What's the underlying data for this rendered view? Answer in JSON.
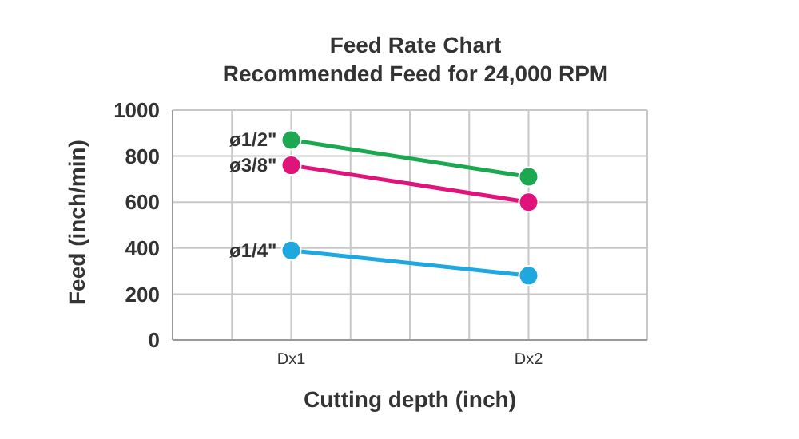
{
  "chart_data": {
    "type": "line",
    "title": "Feed Rate Chart",
    "subtitle": "Recommended Feed for 24,000 RPM",
    "xlabel": "Cutting depth (inch)",
    "ylabel": "Feed (inch/min)",
    "categories": [
      "Dx1",
      "Dx2"
    ],
    "series": [
      {
        "name": "ø1/2\"",
        "color": "#1ba851",
        "values": [
          870,
          710
        ]
      },
      {
        "name": "ø3/8\"",
        "color": "#e0137a",
        "values": [
          760,
          600
        ]
      },
      {
        "name": "ø1/4\"",
        "color": "#1fa8e0",
        "values": [
          390,
          280
        ]
      }
    ],
    "ylim": [
      0,
      1000
    ],
    "yticks": [
      0,
      200,
      400,
      600,
      800,
      1000
    ],
    "grid": true,
    "marker": "circle",
    "line_style": "solid"
  }
}
